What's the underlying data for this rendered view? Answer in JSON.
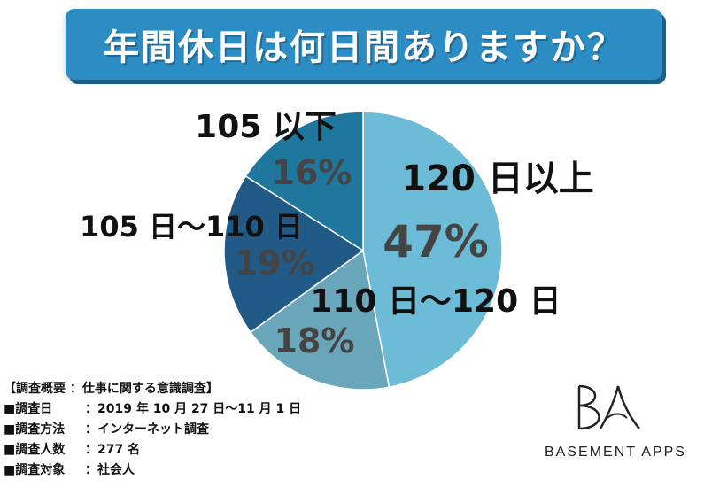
{
  "title": "年間休日は何日間ありますか？",
  "chart_data": {
    "type": "pie",
    "start_angle_deg": 0,
    "direction": "clockwise",
    "slices": [
      {
        "category": "120 日以上",
        "value": 47,
        "label": "47%",
        "color": "#6cbcd8"
      },
      {
        "category": "110 日〜120 日",
        "value": 18,
        "label": "18%",
        "color": "#6aa6b9"
      },
      {
        "category": "105 日〜110 日",
        "value": 19,
        "label": "19%",
        "color": "#215a86"
      },
      {
        "category": "105 以下",
        "value": 16,
        "label": "16%",
        "color": "#1f779e"
      }
    ]
  },
  "survey": {
    "header": "【調査概要 ：仕事に関する意識調査】",
    "rows": [
      {
        "key": "■調査日",
        "value": "：2019 年 10 月 27 日〜11 月 1 日"
      },
      {
        "key": "■調査方法",
        "value": "：インターネット調査"
      },
      {
        "key": "■調査人数",
        "value": "：277 名"
      },
      {
        "key": "■調査対象",
        "value": "：社会人"
      }
    ]
  },
  "logo": {
    "text": "BASEMENT APPS",
    "mark": "BA"
  }
}
